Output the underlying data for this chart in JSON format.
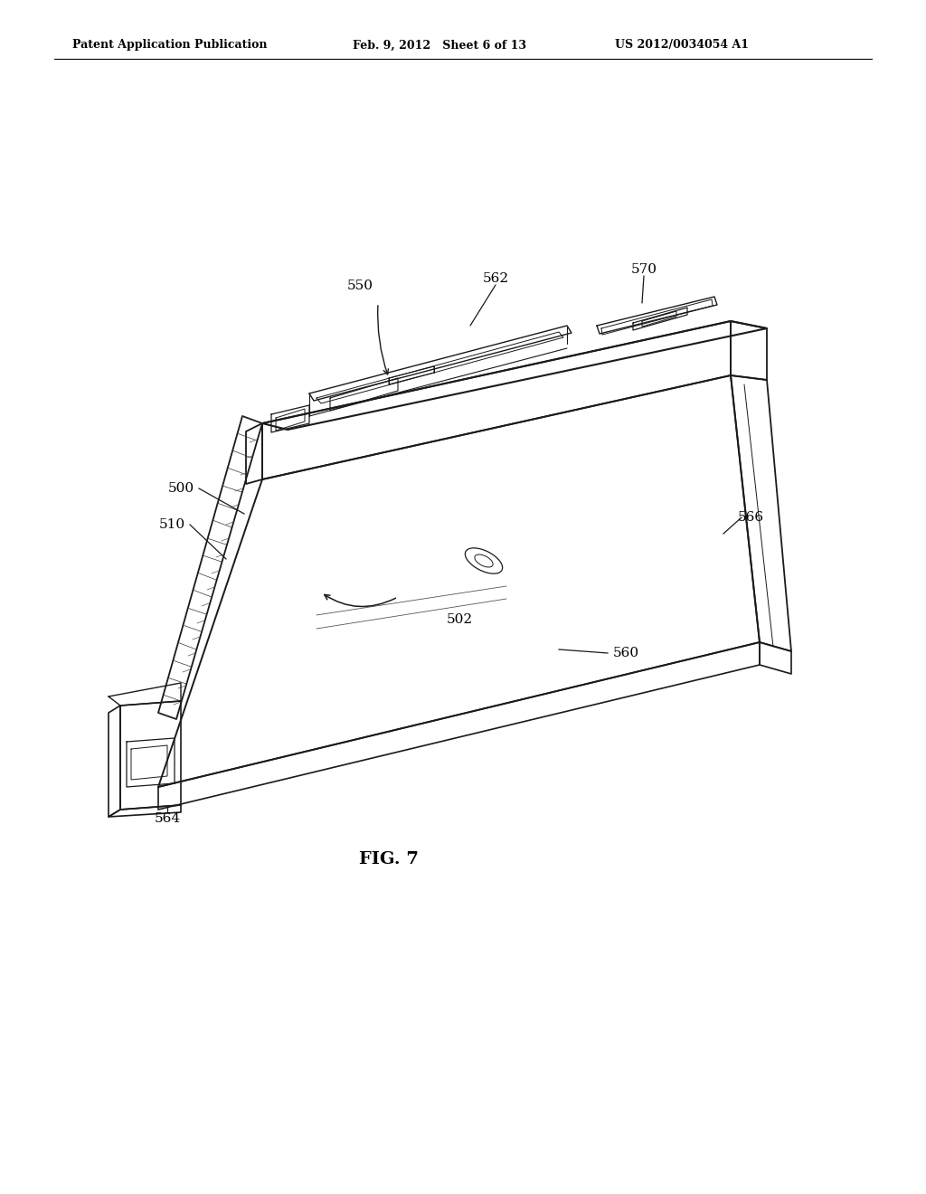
{
  "background_color": "#ffffff",
  "header_left": "Patent Application Publication",
  "header_center": "Feb. 9, 2012   Sheet 6 of 13",
  "header_right": "US 2012/0034054 A1",
  "figure_label": "FIG. 7"
}
